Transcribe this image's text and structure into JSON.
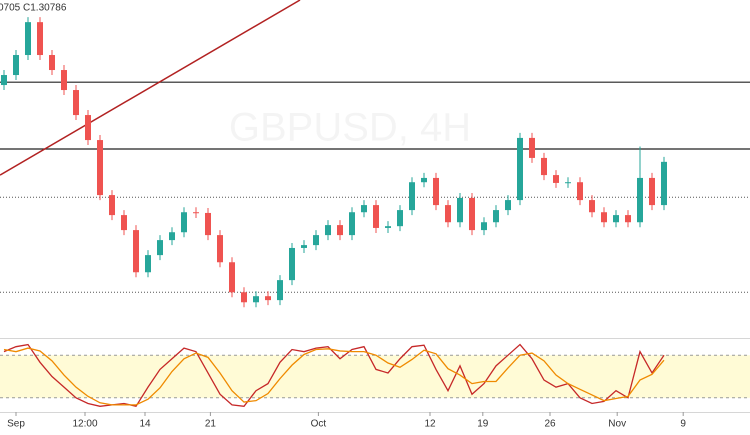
{
  "chart_data": [
    {
      "type": "candlestick",
      "ohlc_text": "0705 C1.30786",
      "watermark": "GBPUSD, 4H",
      "ylim": [
        1.2586,
        1.3532
      ],
      "up_color": "#26a69a",
      "down_color": "#ef5350",
      "open": [
        1.3294,
        1.3322,
        1.3378,
        1.347,
        1.3378,
        1.3336,
        1.328,
        1.321,
        1.314,
        1.2986,
        1.293,
        1.2888,
        1.277,
        1.2818,
        1.286,
        1.2882,
        1.2938,
        1.2936,
        1.2874,
        1.2798,
        1.2714,
        1.2686,
        1.2703,
        1.2692,
        1.2748,
        1.2838,
        1.2846,
        1.2874,
        1.2902,
        1.2874,
        1.2938,
        1.2958,
        1.2894,
        1.2899,
        1.2944,
        1.3022,
        1.3034,
        1.2958,
        1.291,
        1.2978,
        1.2888,
        1.291,
        1.2944,
        1.2972,
        1.3146,
        1.309,
        1.3042,
        1.302,
        1.3022,
        1.2972,
        1.2938,
        1.291,
        1.293,
        1.291,
        1.3034,
        1.2958
      ],
      "high": [
        1.3336,
        1.3392,
        1.3484,
        1.3484,
        1.3392,
        1.335,
        1.3294,
        1.3224,
        1.3154,
        1.3,
        1.2944,
        1.2902,
        1.2832,
        1.2874,
        1.2896,
        1.2952,
        1.2952,
        1.295,
        1.2888,
        1.2812,
        1.2728,
        1.2717,
        1.2717,
        1.2762,
        1.2852,
        1.286,
        1.2888,
        1.2916,
        1.2916,
        1.2952,
        1.2972,
        1.2972,
        1.2913,
        1.2958,
        1.3036,
        1.3048,
        1.3048,
        1.2972,
        1.2992,
        1.2992,
        1.2924,
        1.2958,
        1.2986,
        1.316,
        1.316,
        1.3104,
        1.3056,
        1.3036,
        1.3036,
        1.2986,
        1.2952,
        1.2944,
        1.2944,
        1.3122,
        1.3048,
        1.3093
      ],
      "low": [
        1.328,
        1.3308,
        1.3364,
        1.3364,
        1.3322,
        1.3266,
        1.3196,
        1.3126,
        1.2972,
        1.2916,
        1.2874,
        1.2756,
        1.2756,
        1.2804,
        1.2846,
        1.2868,
        1.2922,
        1.286,
        1.2784,
        1.27,
        1.2672,
        1.2672,
        1.2678,
        1.2678,
        1.2734,
        1.2824,
        1.2832,
        1.286,
        1.286,
        1.286,
        1.2924,
        1.288,
        1.288,
        1.2885,
        1.293,
        1.3008,
        1.2944,
        1.2896,
        1.2896,
        1.2874,
        1.2874,
        1.2896,
        1.293,
        1.2958,
        1.3076,
        1.3028,
        1.3006,
        1.3006,
        1.2958,
        1.2924,
        1.2896,
        1.2896,
        1.2896,
        1.2896,
        1.2944,
        1.2944
      ],
      "close": [
        1.3322,
        1.3378,
        1.347,
        1.3378,
        1.3336,
        1.328,
        1.321,
        1.314,
        1.2986,
        1.293,
        1.2888,
        1.277,
        1.2818,
        1.286,
        1.2882,
        1.2938,
        1.2936,
        1.2874,
        1.2798,
        1.2714,
        1.2686,
        1.2703,
        1.2692,
        1.2748,
        1.2838,
        1.2846,
        1.2874,
        1.2902,
        1.2874,
        1.2938,
        1.2958,
        1.2894,
        1.2899,
        1.2944,
        1.3022,
        1.3034,
        1.2958,
        1.291,
        1.2978,
        1.2888,
        1.291,
        1.2944,
        1.2972,
        1.3146,
        1.309,
        1.3042,
        1.302,
        1.3022,
        1.2972,
        1.2938,
        1.291,
        1.293,
        1.291,
        1.3034,
        1.2958,
        1.3079
      ],
      "solid_levels": [
        1.3302,
        1.3115
      ],
      "dotted_levels": [
        1.298,
        1.2714
      ],
      "trendline": {
        "x": [
          -0.33,
          24.67
        ],
        "y": [
          1.3042,
          1.3532
        ],
        "color": "#b22222"
      },
      "xticks": [
        {
          "value": 1,
          "label": "Sep"
        },
        {
          "value": 6.75,
          "label": "12:00"
        },
        {
          "value": 11.75,
          "label": "14"
        },
        {
          "value": 17.2,
          "label": "21"
        },
        {
          "value": 26.2,
          "label": "Oct"
        },
        {
          "value": 35.5,
          "label": "12"
        },
        {
          "value": 39.9,
          "label": "19"
        },
        {
          "value": 45.5,
          "label": "26"
        },
        {
          "value": 51.1,
          "label": "Nov"
        },
        {
          "value": 56.6,
          "label": "9"
        }
      ]
    },
    {
      "type": "line",
      "ylim": [
        0,
        100
      ],
      "band": [
        20,
        80
      ],
      "band_color": "#fff9c4",
      "series": [
        {
          "color": "#c62828",
          "values": [
            85,
            92,
            95,
            70,
            50,
            35,
            20,
            12,
            8,
            10,
            12,
            8,
            35,
            60,
            75,
            90,
            85,
            55,
            25,
            10,
            8,
            30,
            40,
            70,
            88,
            85,
            90,
            92,
            75,
            88,
            92,
            60,
            55,
            75,
            92,
            94,
            60,
            30,
            65,
            25,
            40,
            65,
            80,
            95,
            75,
            45,
            35,
            40,
            20,
            12,
            15,
            30,
            20,
            85,
            55,
            80
          ]
        },
        {
          "color": "#ef8a00",
          "values": [
            88,
            85,
            90,
            86,
            72,
            52,
            35,
            22,
            13,
            10,
            10,
            10,
            18,
            34,
            57,
            75,
            83,
            77,
            55,
            30,
            14,
            16,
            26,
            47,
            66,
            81,
            88,
            89,
            86,
            85,
            85,
            80,
            69,
            63,
            74,
            87,
            82,
            61,
            52,
            40,
            43,
            43,
            62,
            80,
            83,
            72,
            52,
            40,
            32,
            24,
            16,
            19,
            22,
            45,
            53,
            73
          ]
        }
      ]
    }
  ]
}
